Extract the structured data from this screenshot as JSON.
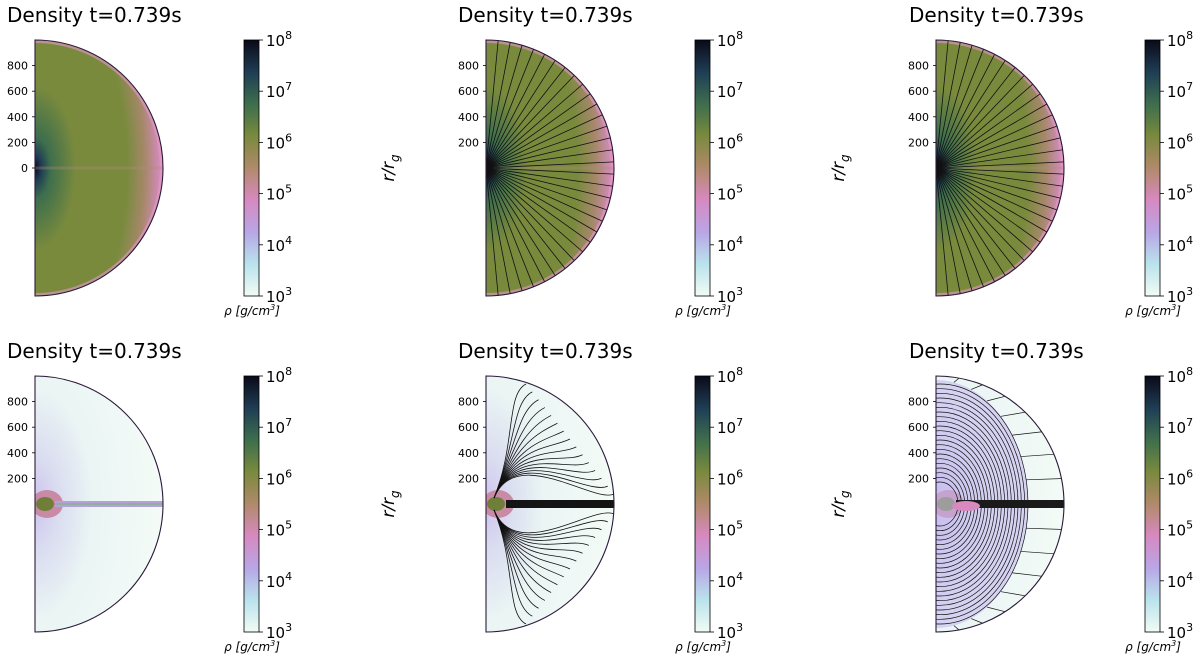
{
  "colors": {
    "cmap": [
      "#f2fbf6",
      "#b9e3ec",
      "#b8a6e6",
      "#d889c0",
      "#b08a6a",
      "#798a3d",
      "#3d6e4d",
      "#1f3d55",
      "#0a0a18"
    ],
    "outline": "#2a1a3a",
    "line": "#111111"
  },
  "chart_data": [
    {
      "type": "heatmap",
      "title": "Density t=0.739s",
      "yticks": [
        "800",
        "600",
        "400",
        "200",
        "0"
      ],
      "ylabel": "",
      "colorbar": {
        "ticks": [
          "10",
          "10",
          "10",
          "10",
          "10",
          "10"
        ],
        "exponents": [
          "8",
          "7",
          "6",
          "5",
          "4",
          "3"
        ],
        "label": "ρ [g/cm",
        "label_sup": "3",
        "label_end": "]",
        "range": [
          1000,
          100000000
        ],
        "scale": "log"
      }
    },
    {
      "type": "heatmap",
      "title": "Density t=0.739s",
      "yticks": [
        "800",
        "600",
        "400",
        "200"
      ],
      "ylabel": "r/r",
      "ylabel_sub": "g",
      "colorbar": {
        "ticks": [
          "10",
          "10",
          "10",
          "10",
          "10",
          "10"
        ],
        "exponents": [
          "8",
          "7",
          "6",
          "5",
          "4",
          "3"
        ],
        "label": "ρ [g/cm",
        "label_sup": "3",
        "label_end": "]",
        "range": [
          1000,
          100000000
        ],
        "scale": "log"
      }
    },
    {
      "type": "heatmap",
      "title": "Density t=0.739s",
      "yticks": [
        "800",
        "600",
        "400",
        "200"
      ],
      "ylabel": "r/r",
      "ylabel_sub": "g",
      "colorbar": {
        "ticks": [
          "10",
          "10",
          "10",
          "10",
          "10",
          "10"
        ],
        "exponents": [
          "8",
          "7",
          "6",
          "5",
          "4",
          "3"
        ],
        "label": "ρ [g/cm",
        "label_sup": "3",
        "label_end": "]",
        "range": [
          1000,
          100000000
        ],
        "scale": "log"
      }
    },
    {
      "type": "heatmap",
      "title": "Density t=0.739s",
      "yticks": [
        "800",
        "600",
        "400",
        "200"
      ],
      "ylabel": "",
      "colorbar": {
        "ticks": [
          "10",
          "10",
          "10",
          "10",
          "10",
          "10"
        ],
        "exponents": [
          "8",
          "7",
          "6",
          "5",
          "4",
          "3"
        ],
        "label": "ρ [g/cm",
        "label_sup": "3",
        "label_end": "]",
        "range": [
          1000,
          100000000
        ],
        "scale": "log"
      }
    },
    {
      "type": "heatmap",
      "title": "Density t=0.739s",
      "yticks": [
        "800",
        "600",
        "400",
        "200"
      ],
      "ylabel": "r/r",
      "ylabel_sub": "g",
      "colorbar": {
        "ticks": [
          "10",
          "10",
          "10",
          "10",
          "10",
          "10"
        ],
        "exponents": [
          "8",
          "7",
          "6",
          "5",
          "4",
          "3"
        ],
        "label": "ρ [g/cm",
        "label_sup": "3",
        "label_end": "]",
        "range": [
          1000,
          100000000
        ],
        "scale": "log"
      }
    },
    {
      "type": "heatmap",
      "title": "Density t=0.739s",
      "yticks": [
        "800",
        "600",
        "400",
        "200"
      ],
      "ylabel": "r/r",
      "ylabel_sub": "g",
      "colorbar": {
        "ticks": [
          "10",
          "10",
          "10",
          "10",
          "10",
          "10"
        ],
        "exponents": [
          "8",
          "7",
          "6",
          "5",
          "4",
          "3"
        ],
        "label": "ρ [g/cm",
        "label_sup": "3",
        "label_end": "]",
        "range": [
          1000,
          100000000
        ],
        "scale": "log"
      }
    }
  ]
}
